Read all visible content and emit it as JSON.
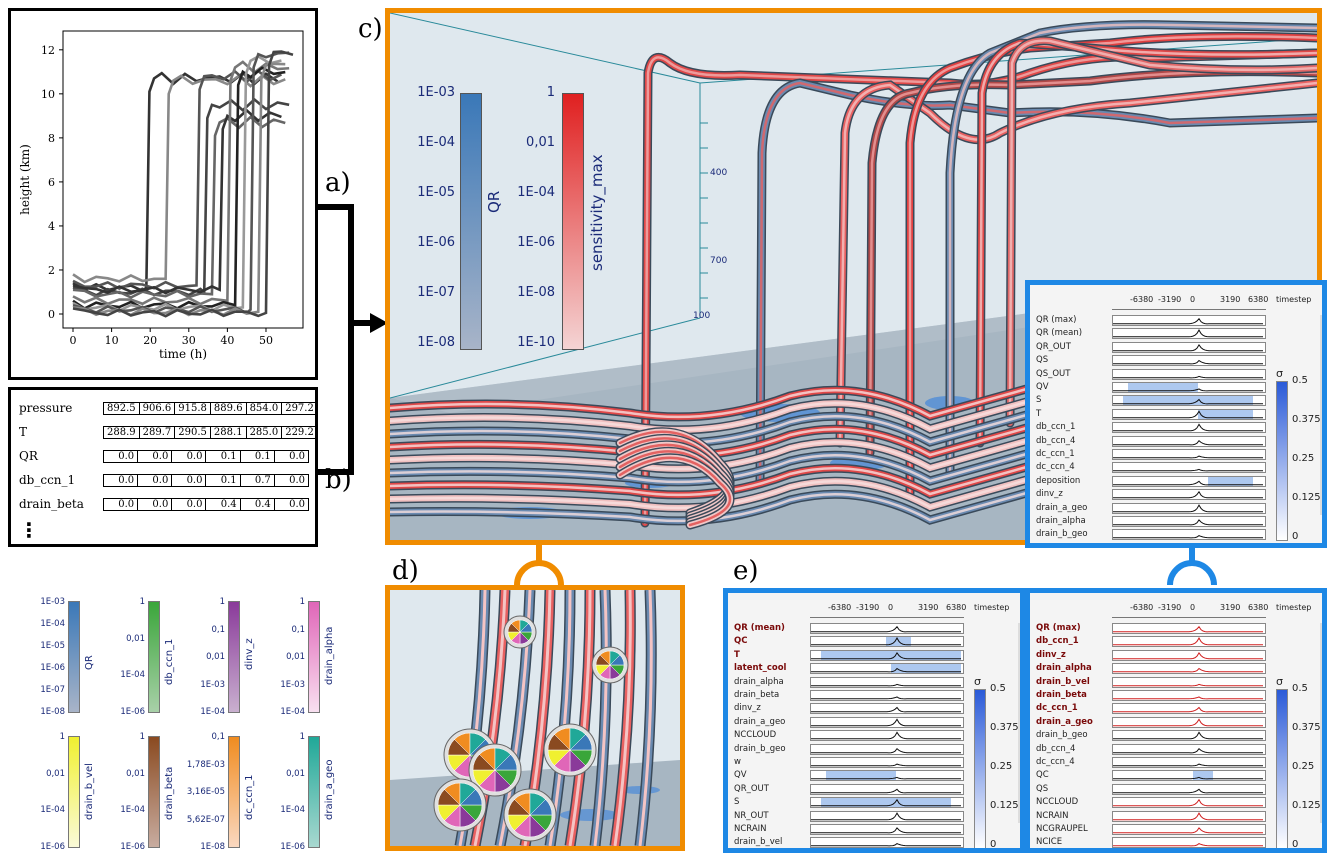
{
  "labels": {
    "a": "a)",
    "b": "b)",
    "c": "c)",
    "d": "d)",
    "e": "e)"
  },
  "panel_a": {
    "xlabel": "time (h)",
    "ylabel": "height (km)",
    "xticks": [
      "0",
      "10",
      "20",
      "30",
      "40",
      "50"
    ],
    "yticks": [
      "0",
      "2",
      "4",
      "6",
      "8",
      "10",
      "12"
    ]
  },
  "panel_b": {
    "rows": [
      {
        "name": "pressure",
        "values": [
          "892.5",
          "906.6",
          "915.8",
          "889.6",
          "854.0",
          "297.2"
        ]
      },
      {
        "name": "T",
        "values": [
          "288.9",
          "289.7",
          "290.5",
          "288.1",
          "285.0",
          "229.2"
        ]
      },
      {
        "name": "QR",
        "values": [
          "0.0",
          "0.0",
          "0.0",
          "0.1",
          "0.1",
          "0.0"
        ]
      },
      {
        "name": "db_ccn_1",
        "values": [
          "0.0",
          "0.0",
          "0.0",
          "0.1",
          "0.7",
          "0.0"
        ]
      },
      {
        "name": "drain_beta",
        "values": [
          "0.0",
          "0.0",
          "0.0",
          "0.4",
          "0.4",
          "0.0"
        ]
      }
    ],
    "more": "⋮"
  },
  "panel_c": {
    "qr_bar": {
      "label": "QR",
      "ticks": [
        "1E-03",
        "1E-04",
        "1E-05",
        "1E-06",
        "1E-07",
        "1E-08"
      ]
    },
    "sens_bar": {
      "label": "sensitivity_max",
      "ticks": [
        "1",
        "0,01",
        "1E-04",
        "1E-06",
        "1E-08",
        "1E-10"
      ]
    },
    "axis_ticks": [
      "400",
      "700",
      "100"
    ]
  },
  "small_bars": [
    {
      "label": "QR",
      "ticks": [
        "1E-03",
        "1E-04",
        "1E-05",
        "1E-06",
        "1E-07",
        "1E-08"
      ],
      "color_top": "#3a78b8",
      "color_bot": "#a8b4c8"
    },
    {
      "label": "db_ccn_1",
      "ticks": [
        "1",
        "0,01",
        "1E-04",
        "1E-06"
      ],
      "color_top": "#3aa63a",
      "color_bot": "#a8d0a8"
    },
    {
      "label": "dinv_z",
      "ticks": [
        "1",
        "0,1",
        "0,01",
        "1E-03",
        "1E-04"
      ],
      "color_top": "#8a3a9a",
      "color_bot": "#c9b0cf"
    },
    {
      "label": "drain_alpha",
      "ticks": [
        "1",
        "0,1",
        "0,01",
        "1E-03",
        "1E-04"
      ],
      "color_top": "#e066b8",
      "color_bot": "#f8e0f0"
    },
    {
      "label": "drain_b_vel",
      "ticks": [
        "1",
        "0,01",
        "1E-04",
        "1E-06"
      ],
      "color_top": "#f0f030",
      "color_bot": "#fafad8"
    },
    {
      "label": "drain_beta",
      "ticks": [
        "1",
        "0,01",
        "1E-04",
        "1E-06"
      ],
      "color_top": "#8a4a20",
      "color_bot": "#c8aca0"
    },
    {
      "label": "dc_ccn_1",
      "ticks": [
        "0,1",
        "1,78E-03",
        "3,16E-05",
        "5,62E-07",
        "1E-08"
      ],
      "color_top": "#f08c20",
      "color_bot": "#fad8c0"
    },
    {
      "label": "drain_a_geo",
      "ticks": [
        "1",
        "0,01",
        "1E-04",
        "1E-06"
      ],
      "color_top": "#20a898",
      "color_bot": "#a8d8d0"
    }
  ],
  "sens_axis": {
    "ticks": [
      "-6380",
      "-3190",
      "0",
      "3190",
      "6380"
    ],
    "unit": "timestep"
  },
  "sigma": {
    "symbol": "σ",
    "ticks": [
      "0.5",
      "0.375",
      "0.25",
      "0.125",
      "0"
    ]
  },
  "sens_c": {
    "rows": [
      "QR (max)",
      "QR (mean)",
      "QR_OUT",
      "QS",
      "QS_OUT",
      "QV",
      "S",
      "T",
      "db_ccn_1",
      "db_ccn_4",
      "dc_ccn_1",
      "dc_ccn_4",
      "deposition",
      "dinv_z",
      "drain_a_geo",
      "drain_alpha",
      "drain_b_geo"
    ]
  },
  "sens_e1": {
    "rows": [
      "QR (mean)",
      "QC",
      "T",
      "latent_cool",
      "drain_alpha",
      "drain_beta",
      "dinv_z",
      "drain_a_geo",
      "NCCLOUD",
      "drain_b_geo",
      "w",
      "QV",
      "QR_OUT",
      "S",
      "NR_OUT",
      "NCRAIN",
      "drain_b_vel"
    ],
    "highlight": [
      0,
      1,
      2,
      3
    ]
  },
  "sens_e2": {
    "rows": [
      "QR (max)",
      "db_ccn_1",
      "dinv_z",
      "drain_alpha",
      "drain_b_vel",
      "drain_beta",
      "dc_ccn_1",
      "drain_a_geo",
      "drain_b_geo",
      "db_ccn_4",
      "dc_ccn_4",
      "QC",
      "QS",
      "NCCLOUD",
      "NCRAIN",
      "NCGRAUPEL",
      "NCICE"
    ],
    "highlight": [
      0,
      1,
      2,
      3,
      4,
      5,
      6,
      7
    ]
  }
}
